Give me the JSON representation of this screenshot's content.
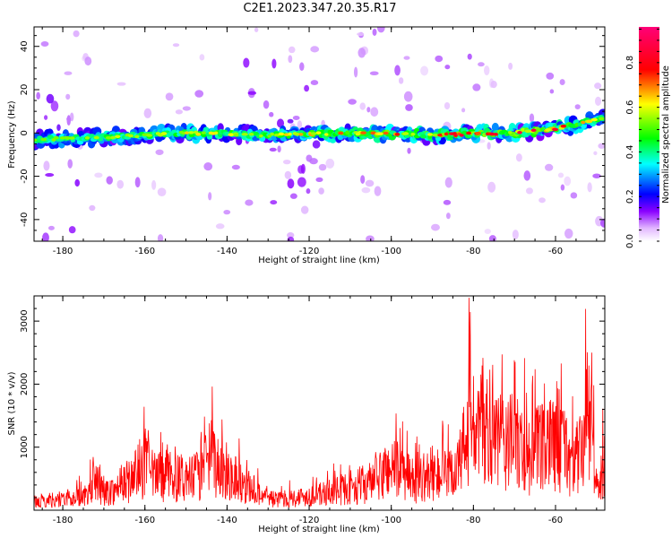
{
  "title": "C2E1.2023.347.20.35.R17",
  "chart_data": [
    {
      "type": "heatmap",
      "title": "C2E1.2023.347.20.35.R17",
      "xlabel": "Height of straight line (km)",
      "ylabel": "Frequency (Hz)",
      "xlim": [
        -187,
        -48
      ],
      "ylim": [
        -50,
        49
      ],
      "xticks": [
        -180,
        -160,
        -140,
        -120,
        -100,
        -80,
        -60
      ],
      "yticks": [
        -40,
        -20,
        0,
        20,
        40
      ],
      "colorbar": {
        "label": "Normalized spectral amplitude",
        "range": [
          0,
          0.96
        ],
        "ticks": [
          0.0,
          0.2,
          0.4,
          0.6,
          0.8
        ],
        "colormap": [
          "#ffffff",
          "#7a00ff",
          "#0000ff",
          "#00ffff",
          "#00ff00",
          "#ffff00",
          "#ff0000",
          "#ff00aa"
        ]
      },
      "main_band": {
        "description_points_km": [
          -187,
          -170,
          -150,
          -130,
          -110,
          -90,
          -70,
          -60,
          -55,
          -48
        ],
        "center_frequency_hz": [
          -3,
          -2,
          0,
          -1,
          0,
          -1,
          0,
          2,
          4,
          7
        ],
        "peak_amplitude": [
          0.55,
          0.6,
          0.7,
          0.65,
          0.8,
          0.85,
          0.96,
          0.9,
          0.75,
          0.6
        ]
      },
      "noise_columns_km": [
        [
          -185,
          -175
        ],
        [
          -136,
          -117
        ]
      ]
    },
    {
      "type": "line",
      "xlabel": "Height of straight line (km)",
      "ylabel": "SNR (10 * v/v)",
      "xlim": [
        -187,
        -48
      ],
      "ylim": [
        0,
        3400
      ],
      "xticks": [
        -180,
        -160,
        -140,
        -120,
        -100,
        -80,
        -60
      ],
      "yticks": [
        1000,
        2000,
        3000
      ],
      "color": "#ff0000",
      "x": [
        -187,
        -183,
        -178,
        -174,
        -172,
        -170,
        -166,
        -162,
        -160,
        -158,
        -154,
        -150,
        -146,
        -144,
        -142,
        -139,
        -136,
        -132,
        -128,
        -124,
        -120,
        -116,
        -112,
        -108,
        -104,
        -102,
        -100,
        -97,
        -94,
        -90,
        -86,
        -83,
        -81,
        -79,
        -77,
        -75,
        -72,
        -70,
        -68,
        -66,
        -64,
        -62,
        -60,
        -58,
        -56,
        -54,
        -52,
        -50,
        -49,
        -48
      ],
      "y": [
        200,
        250,
        300,
        350,
        750,
        400,
        550,
        900,
        1150,
        800,
        850,
        700,
        900,
        1300,
        1000,
        900,
        650,
        400,
        250,
        300,
        350,
        400,
        500,
        600,
        700,
        900,
        1100,
        850,
        700,
        900,
        800,
        1200,
        2200,
        1800,
        2300,
        1600,
        1700,
        1600,
        1500,
        1300,
        1500,
        1400,
        1900,
        1500,
        1200,
        1300,
        2400,
        600,
        700,
        1200
      ]
    }
  ]
}
